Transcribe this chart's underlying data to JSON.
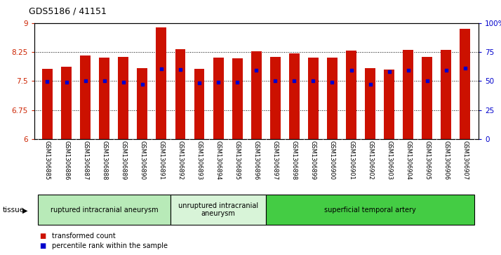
{
  "title": "GDS5186 / 41151",
  "samples": [
    "GSM1306885",
    "GSM1306886",
    "GSM1306887",
    "GSM1306888",
    "GSM1306889",
    "GSM1306890",
    "GSM1306891",
    "GSM1306892",
    "GSM1306893",
    "GSM1306894",
    "GSM1306895",
    "GSM1306896",
    "GSM1306897",
    "GSM1306898",
    "GSM1306899",
    "GSM1306900",
    "GSM1306901",
    "GSM1306902",
    "GSM1306903",
    "GSM1306904",
    "GSM1306905",
    "GSM1306906",
    "GSM1306907"
  ],
  "bar_values": [
    7.82,
    7.86,
    8.16,
    8.1,
    8.12,
    7.83,
    8.88,
    8.32,
    7.82,
    8.1,
    8.08,
    8.27,
    8.12,
    8.22,
    8.1,
    8.1,
    8.28,
    7.83,
    7.8,
    8.3,
    8.12,
    8.3,
    8.85
  ],
  "percentile_values": [
    7.48,
    7.47,
    7.5,
    7.5,
    7.46,
    7.42,
    7.82,
    7.79,
    7.45,
    7.47,
    7.46,
    7.78,
    7.5,
    7.5,
    7.5,
    7.46,
    7.78,
    7.42,
    7.74,
    7.78,
    7.5,
    7.78,
    7.83
  ],
  "groups": [
    {
      "label": "ruptured intracranial aneurysm",
      "start": 0,
      "end": 7,
      "color": "#b8eab8"
    },
    {
      "label": "unruptured intracranial\naneurysm",
      "start": 7,
      "end": 12,
      "color": "#d8f4d8"
    },
    {
      "label": "superficial temporal artery",
      "start": 12,
      "end": 23,
      "color": "#44cc44"
    }
  ],
  "bar_color": "#cc1100",
  "dot_color": "#0000cc",
  "ylim_left": [
    6,
    9
  ],
  "ylim_right": [
    0,
    100
  ],
  "yticks_left": [
    6,
    6.75,
    7.5,
    8.25,
    9
  ],
  "ytick_labels_left": [
    "6",
    "6.75",
    "7.5",
    "8.25",
    "9"
  ],
  "yticks_right": [
    0,
    25,
    50,
    75,
    100
  ],
  "ytick_labels_right": [
    "0",
    "25",
    "50",
    "75",
    "100%"
  ],
  "legend_items": [
    {
      "label": "transformed count",
      "color": "#cc1100"
    },
    {
      "label": "percentile rank within the sample",
      "color": "#0000cc"
    }
  ],
  "background_color": "#ffffff",
  "xtick_area_color": "#d0d0d0",
  "bar_width": 0.55
}
